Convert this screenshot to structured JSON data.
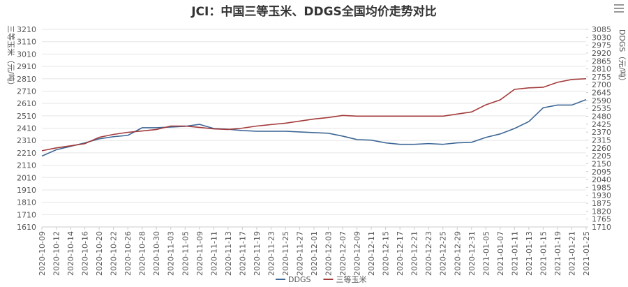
{
  "chart_data": {
    "type": "line",
    "title": "JCI：中国三等玉米、DDGS全国均价走势对比",
    "ylabel": "三等玉米（元/吨）",
    "y2label": "DDGS（元/吨）",
    "categories": [
      "2020-10-09",
      "2020-10-12",
      "2020-10-14",
      "2020-10-16",
      "2020-10-20",
      "2020-10-22",
      "2020-10-26",
      "2020-10-28",
      "2020-10-30",
      "2020-11-03",
      "2020-11-05",
      "2020-11-09",
      "2020-11-11",
      "2020-11-13",
      "2020-11-17",
      "2020-11-19",
      "2020-11-23",
      "2020-11-25",
      "2020-11-27",
      "2020-12-01",
      "2020-12-03",
      "2020-12-07",
      "2020-12-09",
      "2020-12-11",
      "2020-12-15",
      "2020-12-17",
      "2020-12-21",
      "2020-12-23",
      "2020-12-25",
      "2020-12-29",
      "2020-12-31",
      "2021-01-05",
      "2021-01-07",
      "2021-01-11",
      "2021-01-13",
      "2021-01-15",
      "2021-01-19",
      "2021-01-21",
      "2021-01-25"
    ],
    "series": [
      {
        "name": "DDGS",
        "color": "#3e6795",
        "axis": "y2",
        "values": [
          2203,
          2247,
          2271,
          2295,
          2323,
          2338,
          2347,
          2400,
          2400,
          2405,
          2410,
          2424,
          2395,
          2390,
          2381,
          2376,
          2376,
          2376,
          2371,
          2366,
          2362,
          2342,
          2318,
          2314,
          2295,
          2285,
          2285,
          2290,
          2285,
          2295,
          2299,
          2333,
          2357,
          2395,
          2443,
          2539,
          2558,
          2558,
          2596
        ]
      },
      {
        "name": "三等玉米",
        "color": "#a33a3a",
        "values": [
          2227,
          2250,
          2267,
          2284,
          2336,
          2359,
          2376,
          2387,
          2399,
          2427,
          2427,
          2416,
          2404,
          2399,
          2410,
          2427,
          2439,
          2450,
          2467,
          2484,
          2496,
          2513,
          2507,
          2507,
          2507,
          2507,
          2507,
          2507,
          2507,
          2524,
          2541,
          2599,
          2639,
          2724,
          2736,
          2741,
          2781,
          2804,
          2810
        ]
      }
    ],
    "ylim": [
      1610,
      3210
    ],
    "yticks": [
      1610,
      1710,
      1810,
      1910,
      2010,
      2110,
      2210,
      2310,
      2410,
      2510,
      2610,
      2710,
      2810,
      2910,
      3010,
      3110,
      3210
    ],
    "y2lim": [
      1710,
      3085
    ],
    "y2ticks": [
      1710,
      1765,
      1820,
      1875,
      1930,
      1985,
      2040,
      2095,
      2150,
      2205,
      2260,
      2315,
      2370,
      2425,
      2480,
      2535,
      2590,
      2645,
      2700,
      2755,
      2810,
      2865,
      2920,
      2975,
      3030,
      3085
    ],
    "grid": true,
    "legend": "bottom"
  }
}
